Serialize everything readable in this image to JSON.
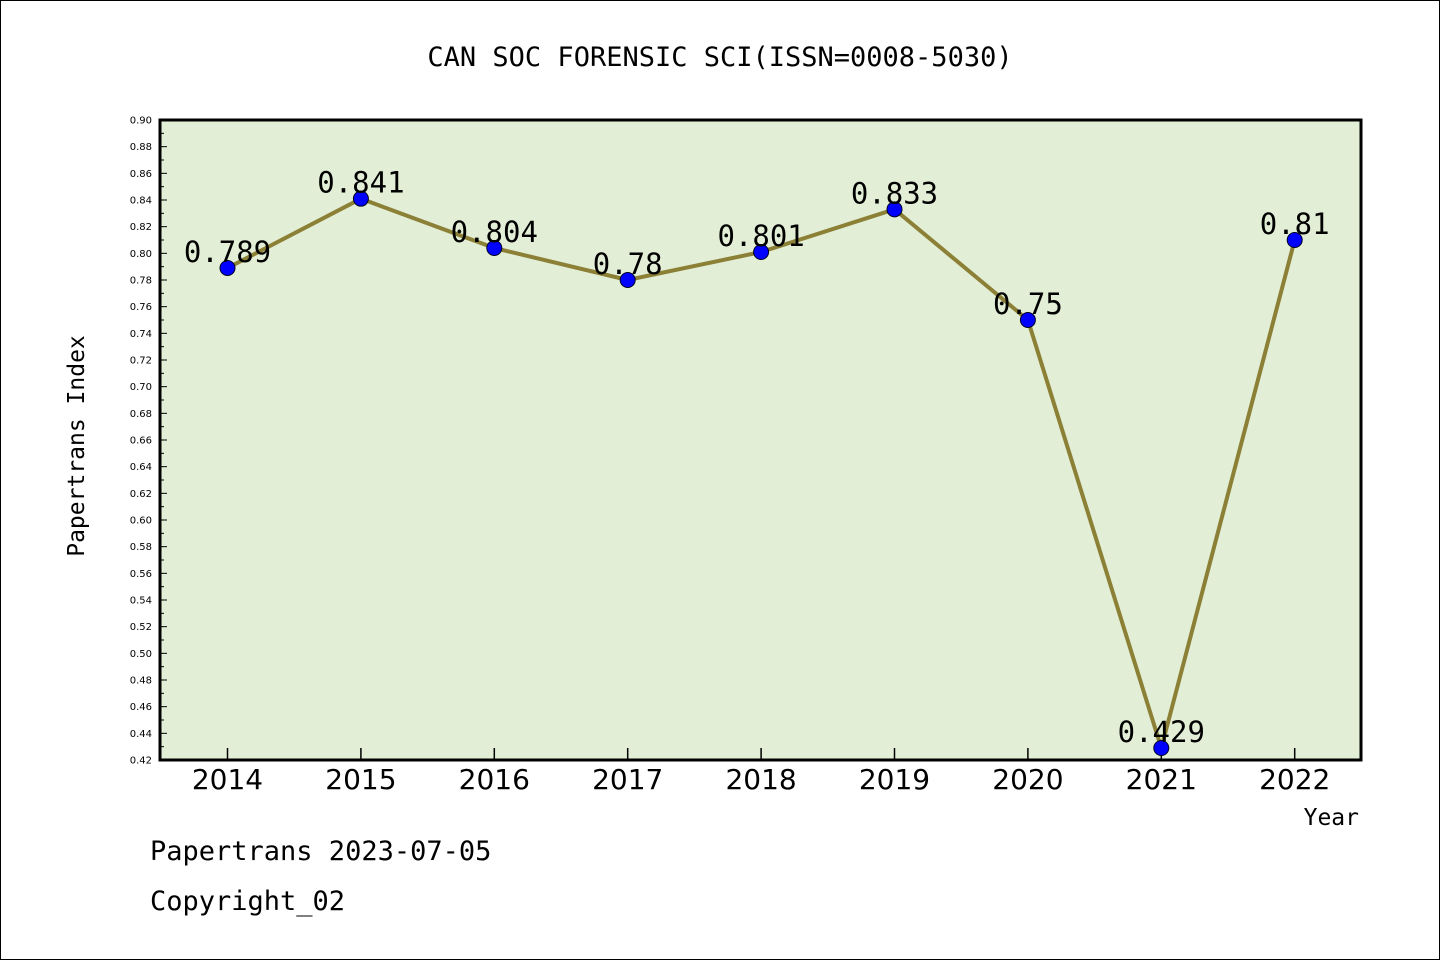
{
  "chart_data": {
    "type": "line",
    "title": "CAN SOC FORENSIC SCI(ISSN=0008-5030)",
    "xlabel": "Year",
    "ylabel": "Papertrans Index",
    "categories": [
      "2014",
      "2015",
      "2016",
      "2017",
      "2018",
      "2019",
      "2020",
      "2021",
      "2022"
    ],
    "values": [
      0.789,
      0.841,
      0.804,
      0.78,
      0.801,
      0.833,
      0.75,
      0.429,
      0.81
    ],
    "data_labels": [
      "0.789",
      "0.841",
      "0.804",
      "0.78",
      "0.801",
      "0.833",
      "0.75",
      "0.429",
      "0.81"
    ],
    "ylim": [
      0.42,
      0.9
    ],
    "yticks": [
      "0.42",
      "0.44",
      "0.46",
      "0.48",
      "0.50",
      "0.52",
      "0.54",
      "0.56",
      "0.58",
      "0.60",
      "0.62",
      "0.64",
      "0.66",
      "0.68",
      "0.70",
      "0.72",
      "0.74",
      "0.76",
      "0.78",
      "0.80",
      "0.82",
      "0.84",
      "0.86",
      "0.88",
      "0.90"
    ],
    "grid": false,
    "colors": {
      "plot_background": "#e2efd6",
      "line": "#8b8036",
      "marker": "#0000ff"
    }
  },
  "footer": {
    "line1": "Papertrans 2023-07-05",
    "line2": "Copyright_02"
  }
}
